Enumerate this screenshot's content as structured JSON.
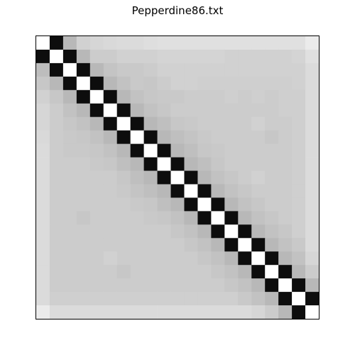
{
  "chart_data": {
    "type": "heatmap",
    "title": "Pepperdine86.txt",
    "xlabel": "",
    "ylabel": "",
    "rows": 21,
    "cols": 21,
    "colormap": "gray",
    "cmap_colors": {
      "low": "#000000",
      "high": "#ffffff"
    },
    "value_range": [
      0,
      1
    ],
    "axes_ticks": false,
    "grid": false,
    "description_of_values": "grayscale intensity per cell, 0 = black, 1 = white",
    "values": [
      [
        1.0,
        0.05,
        0.72,
        0.82,
        0.84,
        0.85,
        0.86,
        0.86,
        0.87,
        0.88,
        0.88,
        0.88,
        0.88,
        0.88,
        0.88,
        0.88,
        0.88,
        0.88,
        0.88,
        0.88,
        0.92
      ],
      [
        0.05,
        1.0,
        0.05,
        0.72,
        0.8,
        0.8,
        0.82,
        0.82,
        0.82,
        0.83,
        0.83,
        0.83,
        0.83,
        0.83,
        0.82,
        0.82,
        0.82,
        0.82,
        0.82,
        0.83,
        0.88
      ],
      [
        0.74,
        0.05,
        1.0,
        0.05,
        0.72,
        0.77,
        0.79,
        0.79,
        0.8,
        0.82,
        0.82,
        0.82,
        0.82,
        0.82,
        0.82,
        0.82,
        0.82,
        0.82,
        0.82,
        0.82,
        0.86
      ],
      [
        0.78,
        0.72,
        0.05,
        1.0,
        0.05,
        0.72,
        0.76,
        0.79,
        0.78,
        0.8,
        0.82,
        0.82,
        0.81,
        0.81,
        0.81,
        0.81,
        0.81,
        0.81,
        0.81,
        0.82,
        0.86
      ],
      [
        0.82,
        0.78,
        0.72,
        0.05,
        1.0,
        0.05,
        0.72,
        0.76,
        0.78,
        0.79,
        0.79,
        0.8,
        0.8,
        0.8,
        0.81,
        0.8,
        0.81,
        0.8,
        0.81,
        0.81,
        0.86
      ],
      [
        0.84,
        0.8,
        0.76,
        0.72,
        0.05,
        1.0,
        0.05,
        0.72,
        0.76,
        0.78,
        0.8,
        0.8,
        0.8,
        0.8,
        0.8,
        0.8,
        0.8,
        0.8,
        0.81,
        0.81,
        0.86
      ],
      [
        0.84,
        0.8,
        0.78,
        0.76,
        0.72,
        0.05,
        1.0,
        0.05,
        0.72,
        0.75,
        0.78,
        0.79,
        0.8,
        0.8,
        0.8,
        0.8,
        0.82,
        0.8,
        0.8,
        0.81,
        0.86
      ],
      [
        0.85,
        0.8,
        0.79,
        0.78,
        0.76,
        0.72,
        0.05,
        1.0,
        0.05,
        0.72,
        0.75,
        0.77,
        0.79,
        0.8,
        0.8,
        0.8,
        0.8,
        0.78,
        0.8,
        0.81,
        0.86
      ],
      [
        0.86,
        0.8,
        0.79,
        0.79,
        0.78,
        0.76,
        0.72,
        0.05,
        1.0,
        0.05,
        0.72,
        0.75,
        0.78,
        0.79,
        0.8,
        0.8,
        0.8,
        0.8,
        0.8,
        0.81,
        0.86
      ],
      [
        0.86,
        0.8,
        0.8,
        0.8,
        0.79,
        0.78,
        0.75,
        0.72,
        0.05,
        1.0,
        0.05,
        0.72,
        0.75,
        0.78,
        0.8,
        0.8,
        0.8,
        0.8,
        0.8,
        0.81,
        0.86
      ],
      [
        0.86,
        0.8,
        0.8,
        0.8,
        0.8,
        0.8,
        0.78,
        0.75,
        0.72,
        0.05,
        1.0,
        0.05,
        0.72,
        0.76,
        0.78,
        0.8,
        0.82,
        0.8,
        0.8,
        0.81,
        0.86
      ],
      [
        0.86,
        0.8,
        0.8,
        0.8,
        0.8,
        0.8,
        0.79,
        0.77,
        0.75,
        0.72,
        0.05,
        1.0,
        0.05,
        0.72,
        0.76,
        0.78,
        0.8,
        0.8,
        0.8,
        0.81,
        0.86
      ],
      [
        0.86,
        0.8,
        0.8,
        0.8,
        0.8,
        0.8,
        0.8,
        0.79,
        0.78,
        0.75,
        0.72,
        0.05,
        1.0,
        0.05,
        0.72,
        0.76,
        0.78,
        0.8,
        0.8,
        0.81,
        0.86
      ],
      [
        0.86,
        0.8,
        0.8,
        0.78,
        0.8,
        0.8,
        0.8,
        0.8,
        0.79,
        0.78,
        0.76,
        0.72,
        0.05,
        1.0,
        0.05,
        0.72,
        0.76,
        0.78,
        0.8,
        0.81,
        0.86
      ],
      [
        0.86,
        0.8,
        0.8,
        0.8,
        0.8,
        0.8,
        0.8,
        0.8,
        0.8,
        0.8,
        0.78,
        0.76,
        0.72,
        0.05,
        1.0,
        0.05,
        0.72,
        0.76,
        0.78,
        0.81,
        0.86
      ],
      [
        0.86,
        0.8,
        0.8,
        0.8,
        0.8,
        0.8,
        0.8,
        0.8,
        0.8,
        0.8,
        0.8,
        0.78,
        0.76,
        0.72,
        0.05,
        1.0,
        0.05,
        0.72,
        0.76,
        0.79,
        0.86
      ],
      [
        0.86,
        0.8,
        0.8,
        0.8,
        0.8,
        0.82,
        0.8,
        0.8,
        0.8,
        0.8,
        0.8,
        0.8,
        0.78,
        0.76,
        0.72,
        0.05,
        1.0,
        0.05,
        0.72,
        0.76,
        0.84
      ],
      [
        0.86,
        0.8,
        0.8,
        0.8,
        0.8,
        0.8,
        0.78,
        0.8,
        0.8,
        0.8,
        0.8,
        0.8,
        0.8,
        0.78,
        0.76,
        0.72,
        0.05,
        1.0,
        0.05,
        0.72,
        0.8
      ],
      [
        0.86,
        0.8,
        0.8,
        0.8,
        0.8,
        0.8,
        0.8,
        0.8,
        0.8,
        0.8,
        0.8,
        0.8,
        0.8,
        0.8,
        0.78,
        0.76,
        0.72,
        0.05,
        1.0,
        0.05,
        0.72
      ],
      [
        0.86,
        0.81,
        0.81,
        0.81,
        0.81,
        0.81,
        0.81,
        0.81,
        0.81,
        0.81,
        0.81,
        0.81,
        0.81,
        0.81,
        0.81,
        0.79,
        0.76,
        0.72,
        0.05,
        1.0,
        0.05
      ],
      [
        0.92,
        0.86,
        0.86,
        0.86,
        0.86,
        0.86,
        0.86,
        0.86,
        0.86,
        0.86,
        0.86,
        0.86,
        0.86,
        0.86,
        0.86,
        0.86,
        0.84,
        0.8,
        0.72,
        0.05,
        1.0
      ]
    ]
  }
}
